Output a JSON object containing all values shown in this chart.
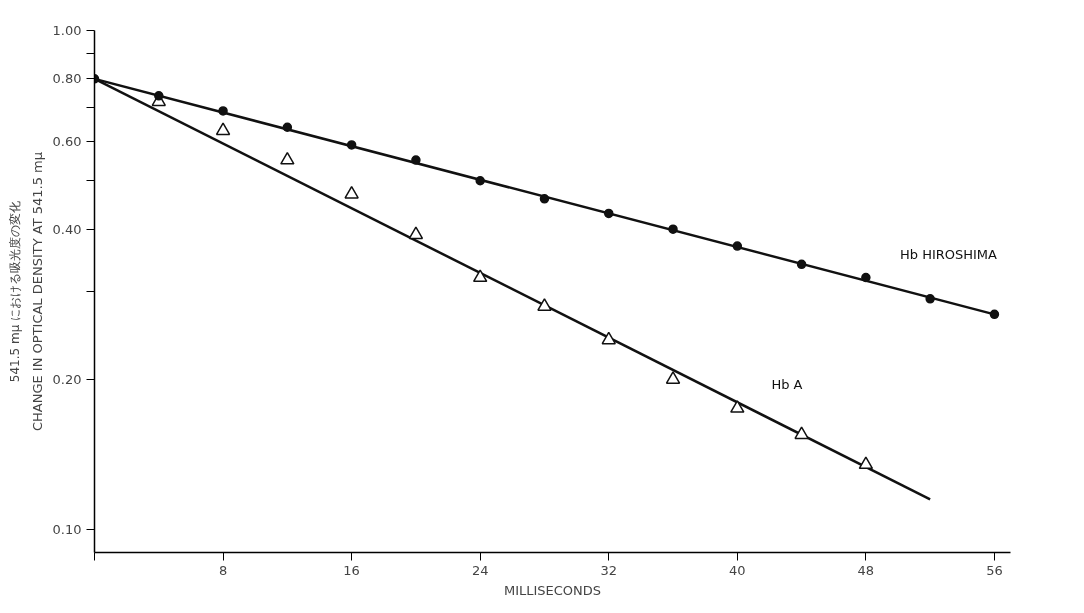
{
  "chart_data": {
    "type": "scatter",
    "xlabel": "MILLISECONDS",
    "ylabel": "CHANGE IN OPTICAL DENSITY AT 541.5 mμ\n541.5 mμ における吸光度の変化",
    "log": "y",
    "grid": false,
    "xlim": [
      0,
      57
    ],
    "xticks": [
      {
        "value": 0,
        "label": null
      },
      8,
      16,
      24,
      32,
      40,
      48,
      56
    ],
    "ylim": [
      0.09,
      1.0
    ],
    "yticks": [
      {
        "value": 0.1,
        "label": "0.10"
      },
      {
        "value": 0.2,
        "label": "0.20"
      },
      {
        "value": 0.3,
        "label": null
      },
      {
        "value": 0.4,
        "label": "0.40"
      },
      {
        "value": 0.5,
        "label": null
      },
      {
        "value": 0.6,
        "label": "0.60"
      },
      {
        "value": 0.7,
        "label": null
      },
      {
        "value": 0.8,
        "label": "0.80"
      },
      {
        "value": 0.9,
        "label": null
      },
      {
        "value": 1.0,
        "label": "1.00"
      }
    ],
    "series": [
      {
        "name": "Hb HIROSHIMA",
        "marker": "circle",
        "color": "#111111",
        "x": [
          0,
          4,
          8,
          12,
          16,
          20,
          24,
          28,
          32,
          36,
          40,
          44,
          48,
          52,
          56
        ],
        "values": [
          0.8,
          0.74,
          0.69,
          0.64,
          0.59,
          0.55,
          0.5,
          0.46,
          0.43,
          0.4,
          0.37,
          0.34,
          0.32,
          0.29,
          0.27
        ]
      },
      {
        "type": "line",
        "marker": "none",
        "line_style": "solid",
        "color": "#111111",
        "x": [
          0,
          56
        ],
        "values": [
          0.8,
          0.27
        ]
      },
      {
        "name": "Hb A",
        "marker": "triangle",
        "color": "#111111",
        "x": [
          4,
          8,
          12,
          16,
          20,
          24,
          28,
          32,
          36,
          40,
          44,
          48
        ],
        "values": [
          0.72,
          0.63,
          0.55,
          0.47,
          0.39,
          0.32,
          0.28,
          0.24,
          0.2,
          0.175,
          0.155,
          0.135
        ]
      },
      {
        "type": "line",
        "marker": "none",
        "line_style": "solid",
        "color": "#111111",
        "x": [
          0,
          52
        ],
        "values": [
          0.8,
          0.115
        ]
      }
    ]
  }
}
